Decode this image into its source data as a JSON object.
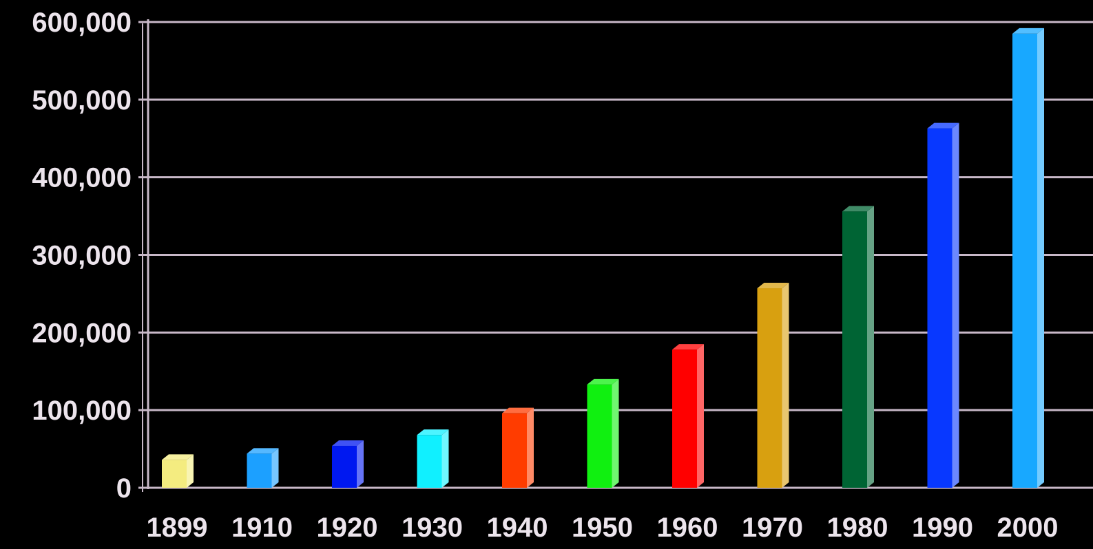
{
  "chart_data": {
    "type": "bar",
    "title": "",
    "xlabel": "",
    "ylabel": "",
    "categories": [
      "1899",
      "1910",
      "1920",
      "1930",
      "1940",
      "1950",
      "1960",
      "1970",
      "1980",
      "1990",
      "2000"
    ],
    "values": [
      36000,
      44000,
      54000,
      68000,
      96000,
      133000,
      178000,
      257000,
      356000,
      463000,
      585000
    ],
    "ylim": [
      0,
      600000
    ],
    "y_ticks": [
      0,
      100000,
      200000,
      300000,
      400000,
      500000,
      600000
    ],
    "y_tick_labels": [
      "0",
      "100,000",
      "200,000",
      "300,000",
      "400,000",
      "500,000",
      "600,000"
    ],
    "grid": true,
    "legend": "none",
    "style": "3d-bar",
    "background_color": "#000000",
    "grid_color": "#c8b8c8",
    "text_color": "#ece4ec",
    "bar_colors": [
      "#f4ec80",
      "#1ca0ff",
      "#0018f0",
      "#10f0ff",
      "#ff3c00",
      "#10f010",
      "#ff0000",
      "#d8a010",
      "#006434",
      "#0838ff",
      "#18a8ff"
    ]
  }
}
